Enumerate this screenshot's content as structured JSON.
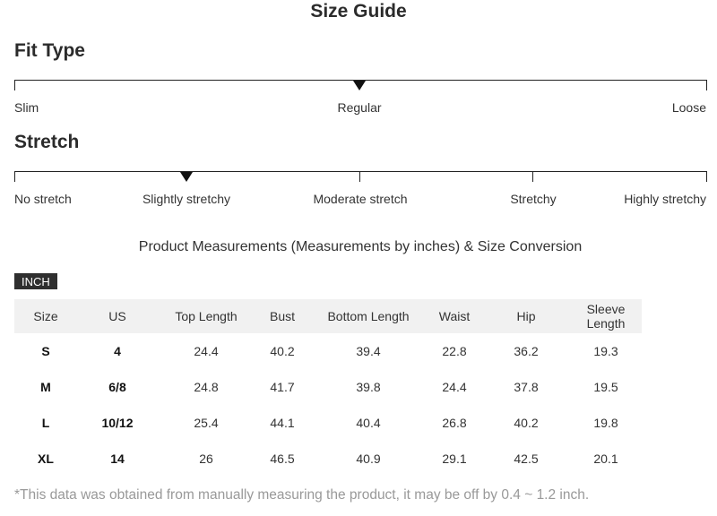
{
  "title": "Size Guide",
  "fit_type": {
    "heading": "Fit Type",
    "labels": [
      "Slim",
      "Regular",
      "Loose"
    ],
    "selected": "Regular"
  },
  "stretch": {
    "heading": "Stretch",
    "labels": [
      "No stretch",
      "Slightly stretchy",
      "Moderate stretch",
      "Stretchy",
      "Highly stretchy"
    ],
    "selected": "Slightly stretchy"
  },
  "measurements": {
    "heading": "Product Measurements (Measurements by inches) & Size Conversion",
    "unit": "INCH",
    "columns": [
      "Size",
      "US",
      "Top Length",
      "Bust",
      "Bottom Length",
      "Waist",
      "Hip",
      "Sleeve Length"
    ],
    "rows": [
      [
        "S",
        "4",
        "24.4",
        "40.2",
        "39.4",
        "22.8",
        "36.2",
        "19.3"
      ],
      [
        "M",
        "6/8",
        "24.8",
        "41.7",
        "39.8",
        "24.4",
        "37.8",
        "19.5"
      ],
      [
        "L",
        "10/12",
        "25.4",
        "44.1",
        "40.4",
        "26.8",
        "40.2",
        "19.8"
      ],
      [
        "XL",
        "14",
        "26",
        "46.5",
        "40.9",
        "29.1",
        "42.5",
        "20.1"
      ]
    ]
  },
  "footnote": "*This data was obtained from manually measuring the product, it may be off by 0.4 ~ 1.2 inch."
}
